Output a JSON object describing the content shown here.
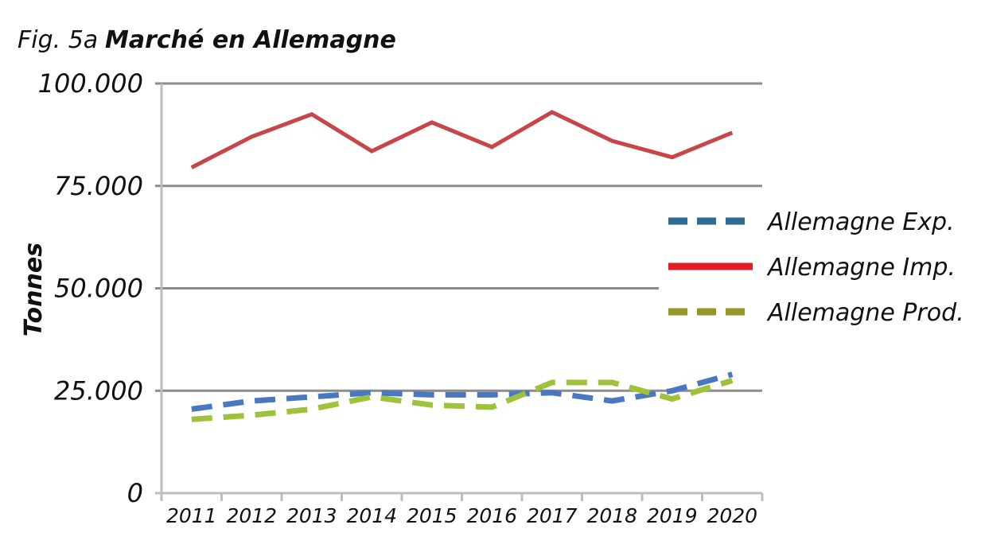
{
  "chart_data": {
    "type": "line",
    "title_prefix": "Fig. 5a",
    "title": "Marché en Allemagne",
    "ylabel": "Tonnes",
    "xlabel": "",
    "ylim": [
      0,
      100000
    ],
    "y_ticks": [
      0,
      25000,
      50000,
      75000,
      100000
    ],
    "y_tick_labels": [
      "0",
      "25.000",
      "50.000",
      "75.000",
      "100.000"
    ],
    "categories": [
      "2011",
      "2012",
      "2013",
      "2014",
      "2015",
      "2016",
      "2017",
      "2018",
      "2019",
      "2020"
    ],
    "grid": "horizontal",
    "legend_position": "right",
    "series": [
      {
        "name": "Allemagne Exp.",
        "color": "#4a78c0",
        "legend_color": "#2f6a95",
        "style": "dashed",
        "values": [
          20500,
          22500,
          23500,
          24500,
          24000,
          24000,
          24500,
          22500,
          25000,
          29000
        ]
      },
      {
        "name": "Allemagne Imp.",
        "color": "#c8454a",
        "legend_color": "#e21e26",
        "style": "solid",
        "values": [
          79500,
          87000,
          92500,
          83500,
          90500,
          84500,
          93000,
          86000,
          82000,
          88000
        ]
      },
      {
        "name": "Allemagne Prod.",
        "color": "#9ec23c",
        "legend_color": "#94992a",
        "style": "dashed",
        "values": [
          18000,
          19000,
          20500,
          23500,
          21500,
          21000,
          27000,
          27000,
          23000,
          27500
        ]
      }
    ]
  }
}
